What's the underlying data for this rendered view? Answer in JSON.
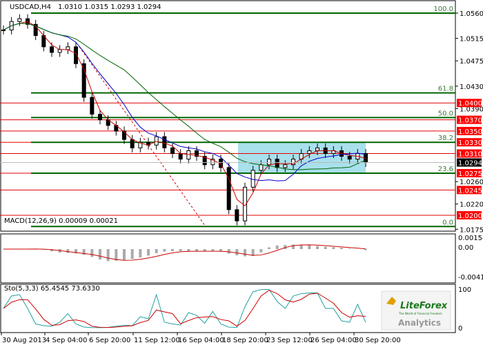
{
  "chart_data": {
    "type": "candlestick",
    "header": {
      "symbol": "USDCAD,H4",
      "ohlc": "1.0310 1.0315 1.0293 1.0294"
    },
    "ylim": [
      1.0175,
      1.058
    ],
    "price_ticks": [
      "1.0560",
      "1.0515",
      "1.0475",
      "1.0430",
      "1.0390",
      "1.0260",
      "1.0220",
      "1.0175"
    ],
    "price_tick_values": [
      1.056,
      1.0515,
      1.0475,
      1.043,
      1.039,
      1.026,
      1.022,
      1.0175
    ],
    "current_price": {
      "label": "1.0294",
      "value": 1.0294
    },
    "red_levels": [
      {
        "label": "1.0400",
        "value": 1.04
      },
      {
        "label": "1.0370",
        "value": 1.037
      },
      {
        "label": "1.0350",
        "value": 1.035
      },
      {
        "label": "1.0330",
        "value": 1.033
      },
      {
        "label": "1.0310",
        "value": 1.031
      },
      {
        "label": "1.0275",
        "value": 1.0275
      },
      {
        "label": "1.0245",
        "value": 1.0245
      },
      {
        "label": "1.0200",
        "value": 1.02
      }
    ],
    "fib_levels": [
      {
        "label": "100.0",
        "value": 1.056
      },
      {
        "label": "61.8",
        "value": 1.0418
      },
      {
        "label": "50.0",
        "value": 1.0374
      },
      {
        "label": "38.2",
        "value": 1.033
      },
      {
        "label": "23.6",
        "value": 1.0275
      },
      {
        "label": "0.0",
        "value": 1.018
      }
    ],
    "closes": [
      1.053,
      1.0545,
      1.055,
      1.054,
      1.052,
      1.05,
      1.049,
      1.0495,
      1.05,
      1.047,
      1.041,
      1.038,
      1.037,
      1.036,
      1.035,
      1.0335,
      1.032,
      1.033,
      1.0325,
      1.034,
      1.032,
      1.031,
      1.03,
      1.0315,
      1.0305,
      1.029,
      1.03,
      1.0285,
      1.021,
      1.019,
      1.025,
      1.028,
      1.029,
      1.03,
      1.0285,
      1.029,
      1.03,
      1.031,
      1.0315,
      1.032,
      1.031,
      1.0315,
      1.0305,
      1.03,
      1.031,
      1.0294
    ],
    "macd": {
      "label": "MACD(12,26,9) 0.00009 0.00021",
      "ticks": [
        "0.00154",
        "0.00",
        "-0.00411"
      ]
    },
    "stochastic": {
      "label": "Sto(5,3,3) 65.4545 73.6330",
      "ticks": [
        "100",
        "0"
      ]
    },
    "time_labels": [
      "30 Aug 2013",
      "4 Sep 04:00",
      "6 Sep 20:00",
      "11 Sep 12:00",
      "16 Sep 04:00",
      "18 Sep 20:00",
      "23 Sep 12:00",
      "26 Sep 04:00",
      "30 Sep 20:00"
    ],
    "logo": {
      "brand": "LiteForex",
      "tagline": "The World of Financial Freedom",
      "sub": "Analytics"
    },
    "colors": {
      "level": "#e00000",
      "fib": "#006400",
      "box": "#a8e0ec",
      "ma_fast": "#cc0000",
      "ma_mid": "#0000cc",
      "ma_slow": "#006400"
    }
  }
}
